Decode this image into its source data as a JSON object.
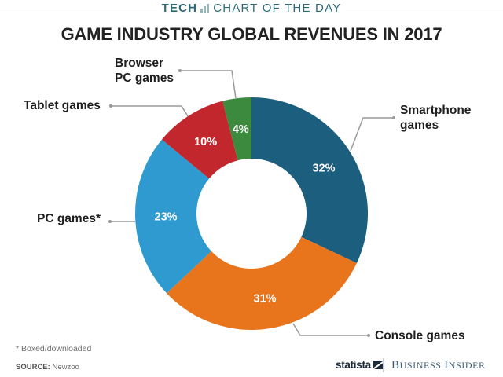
{
  "header": {
    "kicker_section": "TECH",
    "kicker_rest": "CHART OF THE DAY"
  },
  "chart_data": {
    "type": "pie",
    "style": "donut",
    "title": "GAME INDUSTRY GLOBAL REVENUES IN 2017",
    "unit": "%",
    "slices": [
      {
        "label": "Smartphone games",
        "label_lines": [
          "Smartphone",
          "games"
        ],
        "value": 32,
        "display": "32%",
        "color": "#1b5e7e"
      },
      {
        "label": "Console games",
        "label_lines": [
          "Console games"
        ],
        "value": 31,
        "display": "31%",
        "color": "#e8741c"
      },
      {
        "label": "PC games*",
        "label_lines": [
          "PC games*"
        ],
        "value": 23,
        "display": "23%",
        "color": "#2e9ad0"
      },
      {
        "label": "Tablet games",
        "label_lines": [
          "Tablet games"
        ],
        "value": 10,
        "display": "10%",
        "color": "#c1272d"
      },
      {
        "label": "Browser PC games",
        "label_lines": [
          "Browser",
          "PC games"
        ],
        "value": 4,
        "display": "4%",
        "color": "#3b8a3e"
      }
    ],
    "start": "12 o'clock",
    "direction": "clockwise",
    "footnote": "* Boxed/downloaded",
    "source_label": "SOURCE:",
    "source": "Newzoo"
  },
  "branding": {
    "statista": "statista",
    "business_insider_B": "B",
    "business_insider_rest1": "USINESS ",
    "business_insider_I": "I",
    "business_insider_rest2": "NSIDER"
  },
  "colors": {
    "kicker": "#2b6a76",
    "leader": "#9a9a9a"
  }
}
